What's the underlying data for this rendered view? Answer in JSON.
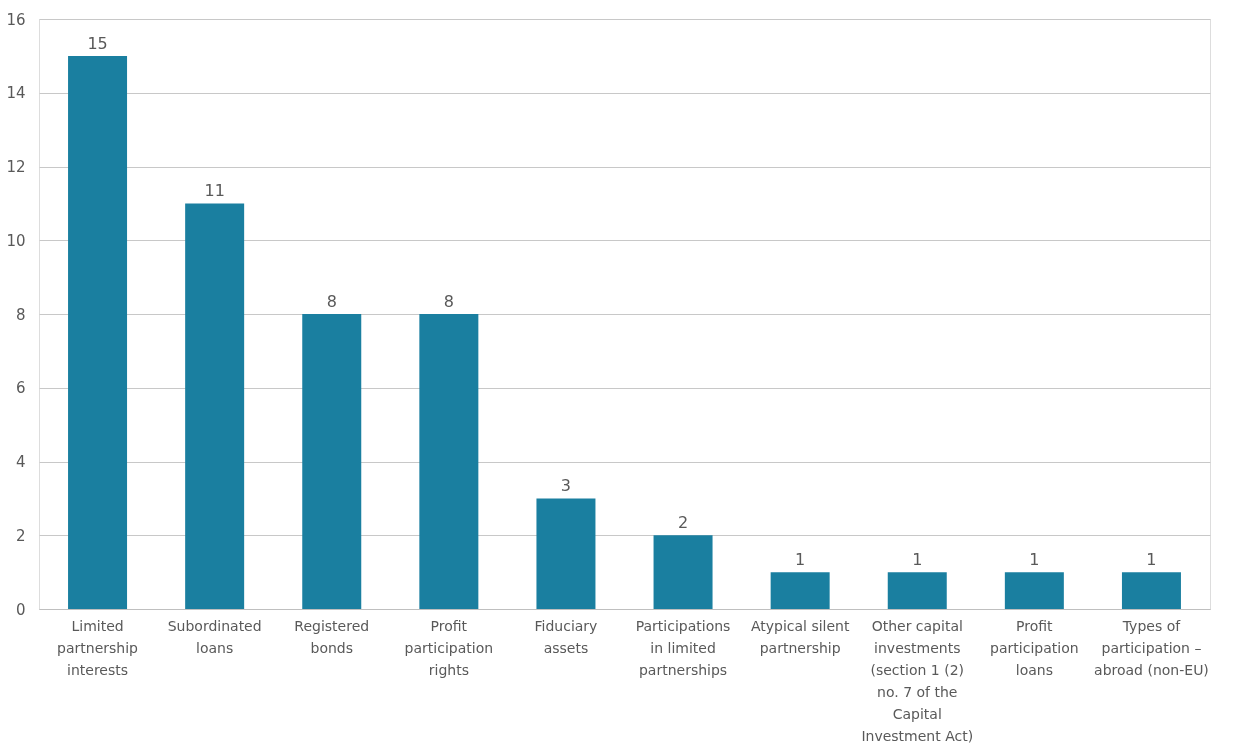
{
  "chart_data": {
    "type": "bar",
    "categories": [
      "Limited partnership interests",
      "Subordinated loans",
      "Registered bonds",
      "Profit participation rights",
      "Fiduciary assets",
      "Participations in limited partnerships",
      "Atypical silent partnership",
      "Other capital investments (section 1 (2) no. 7 of the Capital Investment Act)",
      "Profit participation loans",
      "Types of participation – abroad (non-EU)"
    ],
    "values": [
      15,
      11,
      8,
      8,
      3,
      2,
      1,
      1,
      1,
      1
    ],
    "color": "#1a7fa0",
    "ylim": [
      0,
      16
    ],
    "yticks": [
      0,
      2,
      4,
      6,
      8,
      10,
      12,
      14,
      16
    ],
    "grid": "y",
    "data_labels": true
  }
}
